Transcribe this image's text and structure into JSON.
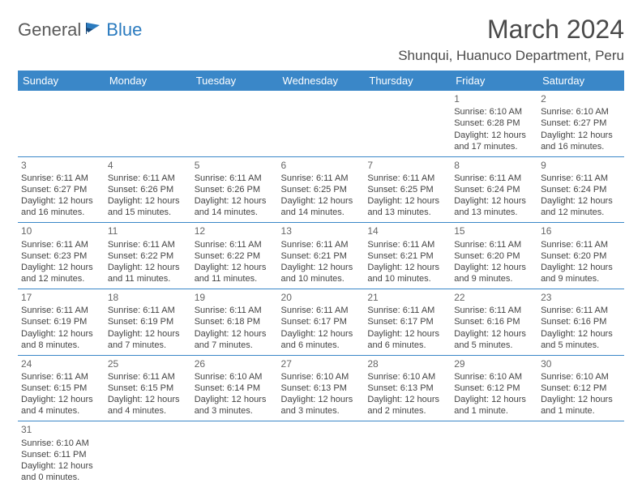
{
  "logo": {
    "part1": "General",
    "part2": "Blue"
  },
  "title": "March 2024",
  "location": "Shunqui, Huanuco Department, Peru",
  "colors": {
    "header_bg": "#3a87c8",
    "header_text": "#ffffff",
    "border": "#3a87c8",
    "text": "#444444",
    "title_text": "#4a4a4a",
    "logo_gray": "#5a5a5a",
    "logo_blue": "#2b7bbf"
  },
  "day_names": [
    "Sunday",
    "Monday",
    "Tuesday",
    "Wednesday",
    "Thursday",
    "Friday",
    "Saturday"
  ],
  "weeks": [
    [
      null,
      null,
      null,
      null,
      null,
      {
        "n": "1",
        "sr": "Sunrise: 6:10 AM",
        "ss": "Sunset: 6:28 PM",
        "d1": "Daylight: 12 hours",
        "d2": "and 17 minutes."
      },
      {
        "n": "2",
        "sr": "Sunrise: 6:10 AM",
        "ss": "Sunset: 6:27 PM",
        "d1": "Daylight: 12 hours",
        "d2": "and 16 minutes."
      }
    ],
    [
      {
        "n": "3",
        "sr": "Sunrise: 6:11 AM",
        "ss": "Sunset: 6:27 PM",
        "d1": "Daylight: 12 hours",
        "d2": "and 16 minutes."
      },
      {
        "n": "4",
        "sr": "Sunrise: 6:11 AM",
        "ss": "Sunset: 6:26 PM",
        "d1": "Daylight: 12 hours",
        "d2": "and 15 minutes."
      },
      {
        "n": "5",
        "sr": "Sunrise: 6:11 AM",
        "ss": "Sunset: 6:26 PM",
        "d1": "Daylight: 12 hours",
        "d2": "and 14 minutes."
      },
      {
        "n": "6",
        "sr": "Sunrise: 6:11 AM",
        "ss": "Sunset: 6:25 PM",
        "d1": "Daylight: 12 hours",
        "d2": "and 14 minutes."
      },
      {
        "n": "7",
        "sr": "Sunrise: 6:11 AM",
        "ss": "Sunset: 6:25 PM",
        "d1": "Daylight: 12 hours",
        "d2": "and 13 minutes."
      },
      {
        "n": "8",
        "sr": "Sunrise: 6:11 AM",
        "ss": "Sunset: 6:24 PM",
        "d1": "Daylight: 12 hours",
        "d2": "and 13 minutes."
      },
      {
        "n": "9",
        "sr": "Sunrise: 6:11 AM",
        "ss": "Sunset: 6:24 PM",
        "d1": "Daylight: 12 hours",
        "d2": "and 12 minutes."
      }
    ],
    [
      {
        "n": "10",
        "sr": "Sunrise: 6:11 AM",
        "ss": "Sunset: 6:23 PM",
        "d1": "Daylight: 12 hours",
        "d2": "and 12 minutes."
      },
      {
        "n": "11",
        "sr": "Sunrise: 6:11 AM",
        "ss": "Sunset: 6:22 PM",
        "d1": "Daylight: 12 hours",
        "d2": "and 11 minutes."
      },
      {
        "n": "12",
        "sr": "Sunrise: 6:11 AM",
        "ss": "Sunset: 6:22 PM",
        "d1": "Daylight: 12 hours",
        "d2": "and 11 minutes."
      },
      {
        "n": "13",
        "sr": "Sunrise: 6:11 AM",
        "ss": "Sunset: 6:21 PM",
        "d1": "Daylight: 12 hours",
        "d2": "and 10 minutes."
      },
      {
        "n": "14",
        "sr": "Sunrise: 6:11 AM",
        "ss": "Sunset: 6:21 PM",
        "d1": "Daylight: 12 hours",
        "d2": "and 10 minutes."
      },
      {
        "n": "15",
        "sr": "Sunrise: 6:11 AM",
        "ss": "Sunset: 6:20 PM",
        "d1": "Daylight: 12 hours",
        "d2": "and 9 minutes."
      },
      {
        "n": "16",
        "sr": "Sunrise: 6:11 AM",
        "ss": "Sunset: 6:20 PM",
        "d1": "Daylight: 12 hours",
        "d2": "and 9 minutes."
      }
    ],
    [
      {
        "n": "17",
        "sr": "Sunrise: 6:11 AM",
        "ss": "Sunset: 6:19 PM",
        "d1": "Daylight: 12 hours",
        "d2": "and 8 minutes."
      },
      {
        "n": "18",
        "sr": "Sunrise: 6:11 AM",
        "ss": "Sunset: 6:19 PM",
        "d1": "Daylight: 12 hours",
        "d2": "and 7 minutes."
      },
      {
        "n": "19",
        "sr": "Sunrise: 6:11 AM",
        "ss": "Sunset: 6:18 PM",
        "d1": "Daylight: 12 hours",
        "d2": "and 7 minutes."
      },
      {
        "n": "20",
        "sr": "Sunrise: 6:11 AM",
        "ss": "Sunset: 6:17 PM",
        "d1": "Daylight: 12 hours",
        "d2": "and 6 minutes."
      },
      {
        "n": "21",
        "sr": "Sunrise: 6:11 AM",
        "ss": "Sunset: 6:17 PM",
        "d1": "Daylight: 12 hours",
        "d2": "and 6 minutes."
      },
      {
        "n": "22",
        "sr": "Sunrise: 6:11 AM",
        "ss": "Sunset: 6:16 PM",
        "d1": "Daylight: 12 hours",
        "d2": "and 5 minutes."
      },
      {
        "n": "23",
        "sr": "Sunrise: 6:11 AM",
        "ss": "Sunset: 6:16 PM",
        "d1": "Daylight: 12 hours",
        "d2": "and 5 minutes."
      }
    ],
    [
      {
        "n": "24",
        "sr": "Sunrise: 6:11 AM",
        "ss": "Sunset: 6:15 PM",
        "d1": "Daylight: 12 hours",
        "d2": "and 4 minutes."
      },
      {
        "n": "25",
        "sr": "Sunrise: 6:11 AM",
        "ss": "Sunset: 6:15 PM",
        "d1": "Daylight: 12 hours",
        "d2": "and 4 minutes."
      },
      {
        "n": "26",
        "sr": "Sunrise: 6:10 AM",
        "ss": "Sunset: 6:14 PM",
        "d1": "Daylight: 12 hours",
        "d2": "and 3 minutes."
      },
      {
        "n": "27",
        "sr": "Sunrise: 6:10 AM",
        "ss": "Sunset: 6:13 PM",
        "d1": "Daylight: 12 hours",
        "d2": "and 3 minutes."
      },
      {
        "n": "28",
        "sr": "Sunrise: 6:10 AM",
        "ss": "Sunset: 6:13 PM",
        "d1": "Daylight: 12 hours",
        "d2": "and 2 minutes."
      },
      {
        "n": "29",
        "sr": "Sunrise: 6:10 AM",
        "ss": "Sunset: 6:12 PM",
        "d1": "Daylight: 12 hours",
        "d2": "and 1 minute."
      },
      {
        "n": "30",
        "sr": "Sunrise: 6:10 AM",
        "ss": "Sunset: 6:12 PM",
        "d1": "Daylight: 12 hours",
        "d2": "and 1 minute."
      }
    ],
    [
      {
        "n": "31",
        "sr": "Sunrise: 6:10 AM",
        "ss": "Sunset: 6:11 PM",
        "d1": "Daylight: 12 hours",
        "d2": "and 0 minutes."
      },
      null,
      null,
      null,
      null,
      null,
      null
    ]
  ]
}
